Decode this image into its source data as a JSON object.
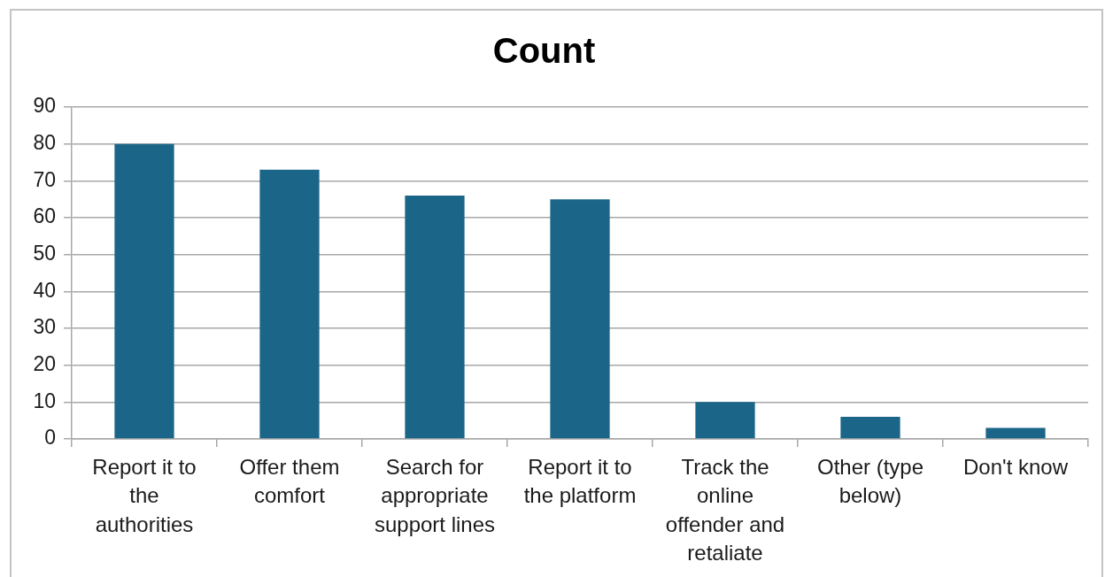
{
  "chart_data": {
    "type": "bar",
    "title": "Count",
    "categories": [
      "Report it to the authorities",
      "Offer them comfort",
      "Search for appropriate support lines",
      "Report it to the platform",
      "Track the online offender and retaliate",
      "Other (type below)",
      "Don't know"
    ],
    "values": [
      80,
      73,
      66,
      65,
      10,
      6,
      3
    ],
    "color": "#1b6588",
    "ylim": [
      0,
      90
    ],
    "yticks": [
      0,
      10,
      20,
      30,
      40,
      50,
      60,
      70,
      80,
      90
    ],
    "grid": "y"
  }
}
